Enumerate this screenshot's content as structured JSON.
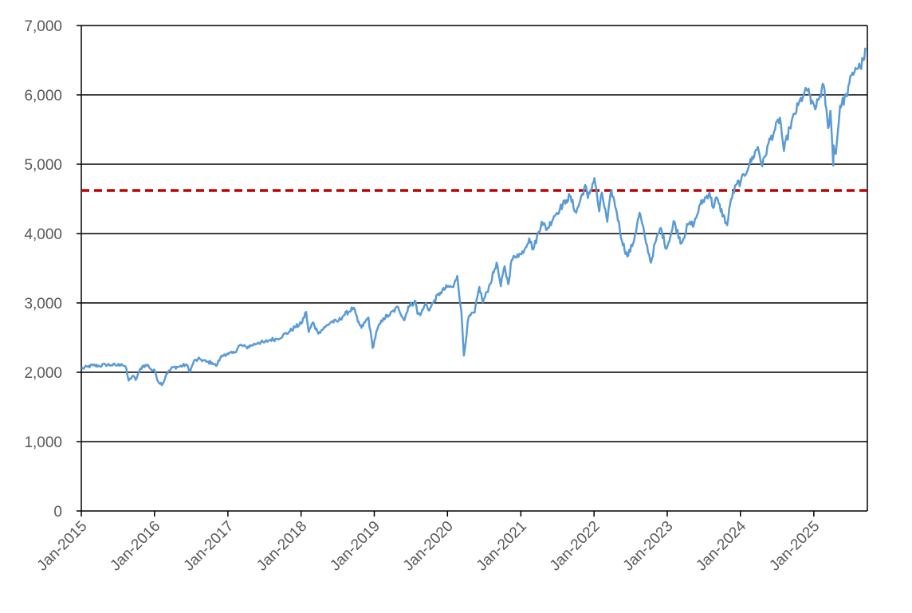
{
  "chart_data": {
    "type": "line",
    "title": "",
    "xlabel": "",
    "ylabel": "",
    "ylim": [
      0,
      7000
    ],
    "xlim": [
      "2015-01",
      "2025-09"
    ],
    "y_ticks": [
      {
        "value": 0,
        "label": "0"
      },
      {
        "value": 1000,
        "label": "1,000"
      },
      {
        "value": 2000,
        "label": "2,000"
      },
      {
        "value": 3000,
        "label": "3,000"
      },
      {
        "value": 4000,
        "label": "4,000"
      },
      {
        "value": 5000,
        "label": "5,000"
      },
      {
        "value": 6000,
        "label": "6,000"
      },
      {
        "value": 7000,
        "label": "7,000"
      }
    ],
    "x_ticks": [
      {
        "value": "2015-01",
        "label": "Jan-2015"
      },
      {
        "value": "2016-01",
        "label": "Jan-2016"
      },
      {
        "value": "2017-01",
        "label": "Jan-2017"
      },
      {
        "value": "2018-01",
        "label": "Jan-2018"
      },
      {
        "value": "2019-01",
        "label": "Jan-2019"
      },
      {
        "value": "2020-01",
        "label": "Jan-2020"
      },
      {
        "value": "2021-01",
        "label": "Jan-2021"
      },
      {
        "value": "2022-01",
        "label": "Jan-2022"
      },
      {
        "value": "2023-01",
        "label": "Jan-2023"
      },
      {
        "value": "2024-01",
        "label": "Jan-2024"
      },
      {
        "value": "2025-01",
        "label": "Jan-2025"
      }
    ],
    "grid": true,
    "legend": "none",
    "series": [
      {
        "color": "#5b9bd5",
        "points": [
          [
            "2015-01-02",
            2050
          ],
          [
            "2015-02-02",
            2080
          ],
          [
            "2015-03-02",
            2100
          ],
          [
            "2015-04-01",
            2090
          ],
          [
            "2015-05-01",
            2110
          ],
          [
            "2015-06-01",
            2105
          ],
          [
            "2015-07-01",
            2100
          ],
          [
            "2015-07-20",
            2120
          ],
          [
            "2015-08-10",
            2080
          ],
          [
            "2015-08-25",
            1880
          ],
          [
            "2015-09-15",
            1950
          ],
          [
            "2015-09-29",
            1890
          ],
          [
            "2015-10-15",
            2000
          ],
          [
            "2015-11-02",
            2090
          ],
          [
            "2015-12-01",
            2100
          ],
          [
            "2015-12-15",
            2040
          ],
          [
            "2016-01-04",
            2010
          ],
          [
            "2016-01-20",
            1860
          ],
          [
            "2016-02-11",
            1830
          ],
          [
            "2016-03-01",
            1980
          ],
          [
            "2016-04-01",
            2070
          ],
          [
            "2016-05-02",
            2080
          ],
          [
            "2016-06-08",
            2110
          ],
          [
            "2016-06-27",
            2010
          ],
          [
            "2016-07-15",
            2160
          ],
          [
            "2016-08-15",
            2190
          ],
          [
            "2016-09-15",
            2150
          ],
          [
            "2016-10-14",
            2140
          ],
          [
            "2016-11-04",
            2090
          ],
          [
            "2016-11-25",
            2210
          ],
          [
            "2016-12-15",
            2260
          ],
          [
            "2017-01-03",
            2260
          ],
          [
            "2017-02-01",
            2280
          ],
          [
            "2017-03-01",
            2390
          ],
          [
            "2017-04-03",
            2360
          ],
          [
            "2017-05-01",
            2390
          ],
          [
            "2017-06-01",
            2430
          ],
          [
            "2017-07-03",
            2430
          ],
          [
            "2017-08-01",
            2470
          ],
          [
            "2017-09-01",
            2480
          ],
          [
            "2017-10-02",
            2530
          ],
          [
            "2017-11-01",
            2580
          ],
          [
            "2017-12-01",
            2650
          ],
          [
            "2018-01-02",
            2700
          ],
          [
            "2018-01-26",
            2870
          ],
          [
            "2018-02-08",
            2580
          ],
          [
            "2018-03-01",
            2720
          ],
          [
            "2018-03-23",
            2590
          ],
          [
            "2018-04-02",
            2580
          ],
          [
            "2018-05-01",
            2650
          ],
          [
            "2018-06-01",
            2730
          ],
          [
            "2018-07-02",
            2730
          ],
          [
            "2018-08-01",
            2820
          ],
          [
            "2018-09-20",
            2930
          ],
          [
            "2018-10-11",
            2730
          ],
          [
            "2018-10-29",
            2640
          ],
          [
            "2018-11-15",
            2720
          ],
          [
            "2018-12-03",
            2790
          ],
          [
            "2018-12-24",
            2350
          ],
          [
            "2019-01-15",
            2610
          ],
          [
            "2019-02-15",
            2780
          ],
          [
            "2019-03-15",
            2820
          ],
          [
            "2019-04-30",
            2940
          ],
          [
            "2019-05-31",
            2750
          ],
          [
            "2019-06-20",
            2950
          ],
          [
            "2019-07-26",
            3020
          ],
          [
            "2019-08-05",
            2840
          ],
          [
            "2019-08-23",
            2850
          ],
          [
            "2019-09-16",
            3000
          ],
          [
            "2019-10-02",
            2890
          ],
          [
            "2019-10-28",
            3040
          ],
          [
            "2019-11-27",
            3150
          ],
          [
            "2019-12-31",
            3230
          ],
          [
            "2020-01-31",
            3230
          ],
          [
            "2020-02-19",
            3390
          ],
          [
            "2020-03-10",
            2880
          ],
          [
            "2020-03-23",
            2240
          ],
          [
            "2020-04-15",
            2790
          ],
          [
            "2020-05-15",
            2860
          ],
          [
            "2020-06-08",
            3230
          ],
          [
            "2020-06-26",
            3010
          ],
          [
            "2020-07-31",
            3270
          ],
          [
            "2020-09-02",
            3580
          ],
          [
            "2020-09-23",
            3240
          ],
          [
            "2020-10-12",
            3530
          ],
          [
            "2020-10-30",
            3270
          ],
          [
            "2020-11-16",
            3620
          ],
          [
            "2020-12-15",
            3700
          ],
          [
            "2021-01-04",
            3700
          ],
          [
            "2021-02-12",
            3930
          ],
          [
            "2021-03-04",
            3770
          ],
          [
            "2021-04-15",
            4170
          ],
          [
            "2021-05-12",
            4060
          ],
          [
            "2021-06-15",
            4250
          ],
          [
            "2021-07-15",
            4360
          ],
          [
            "2021-08-16",
            4480
          ],
          [
            "2021-09-02",
            4540
          ],
          [
            "2021-10-04",
            4300
          ],
          [
            "2021-11-18",
            4700
          ],
          [
            "2021-12-01",
            4510
          ],
          [
            "2022-01-03",
            4800
          ],
          [
            "2022-01-27",
            4320
          ],
          [
            "2022-02-09",
            4590
          ],
          [
            "2022-03-08",
            4170
          ],
          [
            "2022-03-29",
            4630
          ],
          [
            "2022-04-25",
            4300
          ],
          [
            "2022-05-20",
            3900
          ],
          [
            "2022-06-16",
            3670
          ],
          [
            "2022-07-15",
            3860
          ],
          [
            "2022-08-16",
            4300
          ],
          [
            "2022-09-13",
            3930
          ],
          [
            "2022-10-12",
            3580
          ],
          [
            "2022-11-01",
            3860
          ],
          [
            "2022-11-30",
            4080
          ],
          [
            "2022-12-28",
            3780
          ],
          [
            "2023-01-27",
            4070
          ],
          [
            "2023-02-02",
            4180
          ],
          [
            "2023-03-13",
            3860
          ],
          [
            "2023-04-14",
            4130
          ],
          [
            "2023-05-15",
            4140
          ],
          [
            "2023-06-15",
            4420
          ],
          [
            "2023-07-31",
            4590
          ],
          [
            "2023-08-18",
            4370
          ],
          [
            "2023-09-01",
            4520
          ],
          [
            "2023-10-27",
            4120
          ],
          [
            "2023-11-15",
            4500
          ],
          [
            "2023-12-15",
            4720
          ],
          [
            "2024-01-02",
            4740
          ],
          [
            "2024-02-15",
            5000
          ],
          [
            "2024-03-28",
            5250
          ],
          [
            "2024-04-19",
            4970
          ],
          [
            "2024-05-20",
            5300
          ],
          [
            "2024-06-17",
            5470
          ],
          [
            "2024-07-16",
            5670
          ],
          [
            "2024-08-05",
            5190
          ],
          [
            "2024-09-03",
            5530
          ],
          [
            "2024-10-15",
            5850
          ],
          [
            "2024-11-11",
            6000
          ],
          [
            "2024-12-06",
            6090
          ],
          [
            "2024-12-18",
            5870
          ],
          [
            "2025-01-13",
            5830
          ],
          [
            "2025-02-19",
            6140
          ],
          [
            "2025-03-13",
            5520
          ],
          [
            "2025-03-25",
            5770
          ],
          [
            "2025-04-08",
            4980
          ],
          [
            "2025-04-10",
            5270
          ],
          [
            "2025-04-21",
            5150
          ],
          [
            "2025-05-12",
            5840
          ],
          [
            "2025-06-13",
            5980
          ],
          [
            "2025-06-27",
            6170
          ],
          [
            "2025-07-28",
            6390
          ],
          [
            "2025-08-20",
            6400
          ],
          [
            "2025-09-05",
            6500
          ],
          [
            "2025-09-19",
            6660
          ]
        ]
      }
    ],
    "reference_line": {
      "y": 4620,
      "color": "#c00000",
      "style": "dashed"
    }
  }
}
